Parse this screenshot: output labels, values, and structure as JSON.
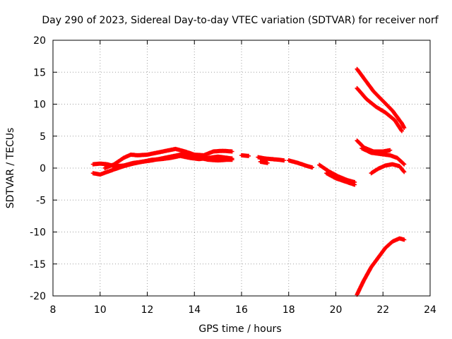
{
  "chart_data": {
    "type": "scatter",
    "title": "Day 290 of 2023, Sidereal Day-to-day VTEC variation (SDTVAR) for receiver norf",
    "xlabel": "GPS time / hours",
    "ylabel": "SDTVAR / TECUs",
    "xlim": [
      8,
      24
    ],
    "ylim": [
      -20,
      20
    ],
    "x_ticks": [
      "8",
      "10",
      "12",
      "14",
      "16",
      "18",
      "20",
      "22",
      "24"
    ],
    "y_ticks": [
      "20",
      "15",
      "10",
      "5",
      "0",
      "-5",
      "-10",
      "-15",
      "-20"
    ],
    "grid": true,
    "marker": "+",
    "color": "#ff0000",
    "series": [
      {
        "points": [
          [
            9.7,
            0.6
          ],
          [
            10.0,
            0.7
          ],
          [
            10.3,
            0.6
          ],
          [
            10.6,
            0.3
          ],
          [
            11.0,
            0.4
          ],
          [
            11.4,
            0.8
          ],
          [
            11.8,
            1.0
          ],
          [
            12.2,
            1.2
          ],
          [
            12.6,
            1.5
          ],
          [
            13.0,
            1.8
          ],
          [
            13.4,
            2.1
          ],
          [
            13.8,
            2.1
          ],
          [
            14.2,
            1.6
          ],
          [
            14.6,
            1.3
          ],
          [
            15.0,
            1.2
          ],
          [
            15.4,
            1.3
          ],
          [
            15.6,
            1.3
          ]
        ]
      },
      {
        "points": [
          [
            9.7,
            -0.8
          ],
          [
            10.0,
            -1.0
          ],
          [
            10.3,
            -0.6
          ],
          [
            10.6,
            -0.2
          ],
          [
            11.0,
            0.3
          ],
          [
            11.4,
            0.7
          ],
          [
            11.8,
            1.0
          ],
          [
            12.2,
            1.3
          ],
          [
            12.6,
            1.4
          ],
          [
            13.0,
            1.6
          ],
          [
            13.4,
            1.9
          ],
          [
            13.8,
            1.6
          ],
          [
            14.2,
            1.4
          ],
          [
            14.6,
            1.6
          ],
          [
            15.0,
            1.8
          ],
          [
            15.4,
            1.6
          ],
          [
            15.6,
            1.5
          ]
        ]
      },
      {
        "points": [
          [
            10.2,
            0.0
          ],
          [
            10.6,
            0.6
          ],
          [
            11.0,
            1.6
          ],
          [
            11.3,
            2.1
          ],
          [
            11.6,
            2.0
          ],
          [
            12.0,
            2.1
          ],
          [
            12.4,
            2.4
          ],
          [
            12.8,
            2.7
          ],
          [
            13.2,
            3.0
          ],
          [
            13.6,
            2.6
          ],
          [
            14.0,
            2.1
          ],
          [
            14.4,
            2.0
          ],
          [
            14.8,
            2.6
          ],
          [
            15.2,
            2.7
          ],
          [
            15.6,
            2.6
          ]
        ]
      },
      {
        "points": [
          [
            16.0,
            2.0
          ],
          [
            16.3,
            1.9
          ]
        ]
      },
      {
        "points": [
          [
            16.7,
            1.7
          ],
          [
            17.0,
            1.5
          ],
          [
            17.3,
            1.4
          ],
          [
            17.6,
            1.3
          ],
          [
            17.8,
            1.2
          ]
        ]
      },
      {
        "points": [
          [
            16.8,
            1.0
          ],
          [
            17.1,
            0.8
          ]
        ]
      },
      {
        "points": [
          [
            18.0,
            1.2
          ],
          [
            18.4,
            0.8
          ],
          [
            18.8,
            0.3
          ],
          [
            19.0,
            0.1
          ]
        ]
      },
      {
        "points": [
          [
            19.3,
            0.5
          ],
          [
            19.7,
            -0.5
          ],
          [
            20.1,
            -1.3
          ],
          [
            20.5,
            -1.9
          ],
          [
            20.8,
            -2.2
          ]
        ]
      },
      {
        "points": [
          [
            19.6,
            -0.8
          ],
          [
            20.0,
            -1.6
          ],
          [
            20.4,
            -2.1
          ],
          [
            20.8,
            -2.6
          ]
        ]
      },
      {
        "points": [
          [
            20.9,
            15.5
          ],
          [
            21.2,
            14.0
          ],
          [
            21.6,
            12.0
          ],
          [
            22.0,
            10.5
          ],
          [
            22.4,
            9.0
          ],
          [
            22.8,
            7.0
          ],
          [
            22.9,
            6.3
          ]
        ]
      },
      {
        "points": [
          [
            20.9,
            12.5
          ],
          [
            21.3,
            10.8
          ],
          [
            21.7,
            9.6
          ],
          [
            22.1,
            8.7
          ],
          [
            22.5,
            7.5
          ],
          [
            22.8,
            5.8
          ]
        ]
      },
      {
        "points": [
          [
            20.9,
            4.3
          ],
          [
            21.2,
            3.2
          ],
          [
            21.6,
            2.6
          ],
          [
            22.0,
            2.6
          ],
          [
            22.3,
            2.8
          ]
        ]
      },
      {
        "points": [
          [
            21.1,
            3.1
          ],
          [
            21.5,
            2.4
          ],
          [
            21.9,
            2.2
          ],
          [
            22.3,
            2.0
          ],
          [
            22.6,
            1.6
          ],
          [
            22.9,
            0.6
          ]
        ]
      },
      {
        "points": [
          [
            21.5,
            -0.8
          ],
          [
            21.8,
            -0.1
          ],
          [
            22.1,
            0.4
          ],
          [
            22.4,
            0.6
          ],
          [
            22.7,
            0.3
          ],
          [
            22.9,
            -0.6
          ]
        ]
      },
      {
        "points": [
          [
            20.9,
            -19.8
          ],
          [
            21.0,
            -19.0
          ],
          [
            21.2,
            -17.5
          ],
          [
            21.5,
            -15.5
          ],
          [
            21.8,
            -14.0
          ],
          [
            22.1,
            -12.5
          ],
          [
            22.4,
            -11.5
          ],
          [
            22.7,
            -11.0
          ],
          [
            22.9,
            -11.2
          ]
        ]
      }
    ]
  }
}
